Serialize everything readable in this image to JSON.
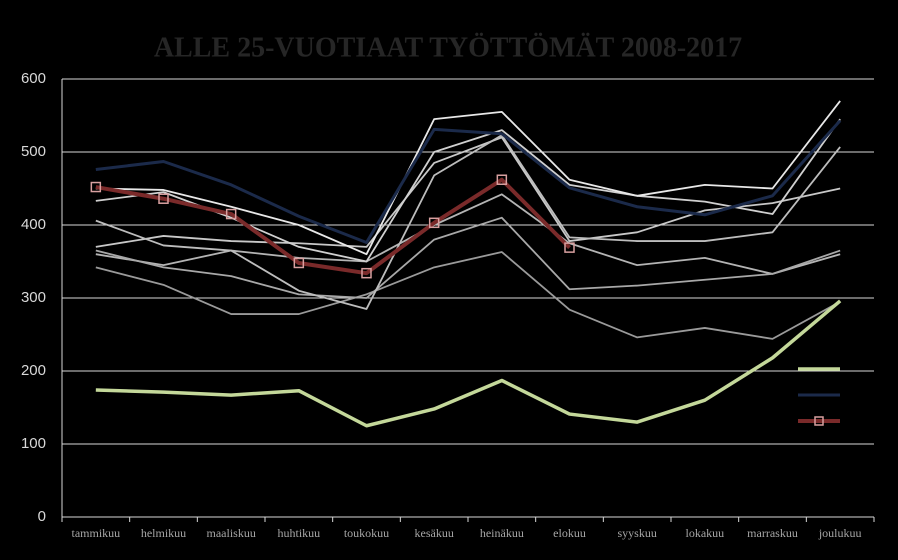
{
  "chart_data": {
    "type": "line",
    "title": "ALLE 25-VUOTIAAT TYÖTTÖMÄT 2008-2017",
    "categories": [
      "tammikuu",
      "helmikuu",
      "maaliskuu",
      "huhtikuu",
      "toukokuu",
      "kesäkuu",
      "heinäkuu",
      "elokuu",
      "syyskuu",
      "lokakuu",
      "marraskuu",
      "joulukuu"
    ],
    "ylim": [
      0,
      600
    ],
    "yticks": [
      0,
      100,
      200,
      300,
      400,
      500,
      600
    ],
    "grid": true,
    "series": [
      {
        "color": "#c4d89a",
        "width": 3.5,
        "values": [
          174,
          171,
          167,
          173,
          125,
          148,
          187,
          141,
          130,
          160,
          218,
          296
        ]
      },
      {
        "color": "#1b2a4a",
        "width": 3,
        "values": [
          476,
          487,
          455,
          412,
          376,
          531,
          525,
          451,
          425,
          414,
          440,
          543
        ]
      },
      {
        "color": "#7a2a2a",
        "width": 4,
        "marker": "square",
        "values": [
          452,
          436,
          415,
          348,
          334,
          403,
          462,
          369,
          null,
          null,
          null,
          null
        ]
      },
      {
        "color": "#e8e8e8",
        "width": 1.8,
        "values": [
          450,
          448,
          425,
          400,
          360,
          545,
          555,
          462,
          440,
          455,
          450,
          570
        ]
      },
      {
        "color": "#d0d0d0",
        "width": 1.8,
        "values": [
          433,
          445,
          410,
          370,
          350,
          500,
          530,
          455,
          440,
          432,
          415,
          545
        ]
      },
      {
        "color": "#bdbdbd",
        "width": 1.8,
        "values": [
          406,
          372,
          365,
          310,
          285,
          468,
          523,
          383,
          378,
          378,
          390,
          507
        ]
      },
      {
        "color": "#c8c8c8",
        "width": 1.8,
        "values": [
          370,
          385,
          378,
          375,
          370,
          485,
          520,
          378,
          390,
          420,
          430,
          450
        ]
      },
      {
        "color": "#a8a8a8",
        "width": 1.8,
        "values": [
          365,
          342,
          330,
          305,
          300,
          380,
          410,
          312,
          317,
          325,
          333,
          365
        ]
      },
      {
        "color": "#9a9a9a",
        "width": 1.8,
        "values": [
          342,
          318,
          278,
          278,
          305,
          342,
          363,
          284,
          246,
          259,
          244,
          295
        ]
      },
      {
        "color": "#b4b4b4",
        "width": 1.8,
        "values": [
          360,
          345,
          365,
          355,
          350,
          400,
          442,
          375,
          345,
          355,
          333,
          360
        ]
      }
    ]
  }
}
